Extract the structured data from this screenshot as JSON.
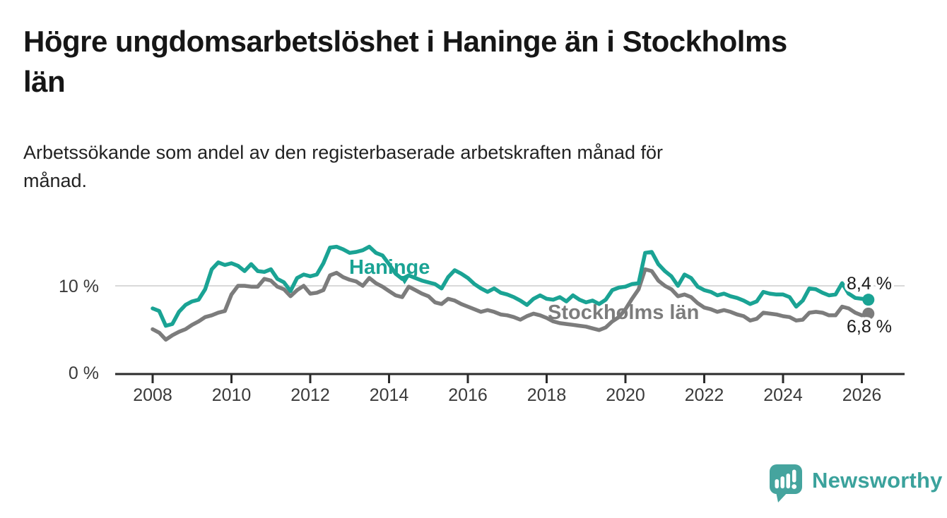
{
  "header": {
    "title": "Högre ungdomsarbetslöshet i Haninge än i Stockholms län",
    "title_lines": [
      "Högre ungdomsarbetslöshet i Haninge än i Stockholms",
      "län"
    ],
    "subtitle": "Arbetssökande som andel av den registerbaserade arbetskraften månad för månad.",
    "subtitle_lines": [
      "Arbetssökande som andel av den registerbaserade arbetskraften månad för",
      "månad."
    ]
  },
  "chart_data": {
    "type": "line",
    "title": "Högre ungdomsarbetslöshet i Haninge än i Stockholms län",
    "subtitle": "Arbetssökande som andel av den registerbaserade arbetskraften månad för månad.",
    "x_start_year": 2008,
    "x_step_months": 2,
    "x_end_label_year": 2026.17,
    "x_ticks": [
      2008,
      2010,
      2012,
      2014,
      2016,
      2018,
      2020,
      2022,
      2024,
      2026
    ],
    "y_axis": {
      "ylim": [
        0,
        15.8
      ],
      "gridlines": [
        10
      ],
      "ticks": [
        {
          "value": 10,
          "label": "10 %"
        },
        {
          "value": 0,
          "label": "0 %"
        }
      ]
    },
    "grid": "horizontal-only",
    "legend_position": "inline-labels",
    "series": [
      {
        "name": "Haninge",
        "color": "#1aa394",
        "end_label": "8,4 %",
        "end_value": 8.4,
        "values": [
          7.4,
          7.1,
          5.4,
          5.6,
          7.0,
          7.8,
          8.2,
          8.4,
          9.6,
          11.9,
          12.7,
          12.4,
          12.6,
          12.3,
          11.7,
          12.5,
          11.7,
          11.6,
          11.9,
          10.8,
          10.4,
          9.4,
          10.9,
          11.3,
          11.1,
          11.3,
          12.6,
          14.4,
          14.5,
          14.2,
          13.8,
          13.9,
          14.1,
          14.5,
          13.8,
          13.5,
          12.5,
          11.4,
          10.8,
          11.2,
          10.9,
          10.6,
          10.4,
          10.2,
          9.7,
          11.0,
          11.8,
          11.4,
          10.9,
          10.2,
          9.7,
          9.3,
          9.7,
          9.2,
          9.0,
          8.7,
          8.3,
          7.8,
          8.5,
          8.9,
          8.5,
          8.4,
          8.7,
          8.2,
          8.9,
          8.4,
          8.1,
          8.3,
          7.9,
          8.4,
          9.5,
          9.8,
          9.9,
          10.2,
          10.3,
          13.8,
          13.9,
          12.5,
          11.7,
          11.1,
          10.0,
          11.3,
          10.9,
          9.9,
          9.5,
          9.3,
          8.9,
          9.1,
          8.8,
          8.6,
          8.3,
          7.9,
          8.2,
          9.3,
          9.1,
          9.0,
          9.0,
          8.7,
          7.6,
          8.3,
          9.7,
          9.6,
          9.2,
          8.9,
          9.0,
          10.3,
          9.1,
          8.6,
          8.5,
          8.4
        ]
      },
      {
        "name": "Stockholms län",
        "color": "#7c7c7c",
        "end_label": "6,8 %",
        "end_value": 6.8,
        "values": [
          5.0,
          4.6,
          3.8,
          4.3,
          4.7,
          5.0,
          5.5,
          5.9,
          6.4,
          6.6,
          6.9,
          7.1,
          9.0,
          10.0,
          10.0,
          9.9,
          9.9,
          10.8,
          10.6,
          9.9,
          9.6,
          8.8,
          9.5,
          10.0,
          9.1,
          9.2,
          9.5,
          11.2,
          11.5,
          11.0,
          10.7,
          10.5,
          10.0,
          10.9,
          10.3,
          9.9,
          9.4,
          8.9,
          8.7,
          9.9,
          9.5,
          9.1,
          8.8,
          8.1,
          7.9,
          8.5,
          8.3,
          7.9,
          7.6,
          7.3,
          7.0,
          7.2,
          7.0,
          6.7,
          6.6,
          6.4,
          6.1,
          6.5,
          6.8,
          6.6,
          6.3,
          5.9,
          5.7,
          5.6,
          5.5,
          5.4,
          5.3,
          5.1,
          4.9,
          5.2,
          5.9,
          6.4,
          7.3,
          8.5,
          9.6,
          11.9,
          11.7,
          10.6,
          10.0,
          9.6,
          8.8,
          9.0,
          8.7,
          8.0,
          7.5,
          7.3,
          7.0,
          7.2,
          7.0,
          6.7,
          6.5,
          6.0,
          6.2,
          6.9,
          6.8,
          6.7,
          6.5,
          6.4,
          6.0,
          6.1,
          6.9,
          7.0,
          6.9,
          6.6,
          6.6,
          7.6,
          7.4,
          6.9,
          6.6,
          6.8
        ]
      }
    ]
  },
  "footer": {
    "brand": "Newsworthy",
    "brand_color": "#3ba29c",
    "logo_icon": "speech-bubble-bar-chart-exclamation"
  },
  "colors": {
    "background": "#ffffff",
    "title_text": "#161616",
    "axis_text": "#3a3a3a",
    "axis_line": "#2b2b2b",
    "gridline": "#d9d9d9",
    "haninge_teal": "#1aa394",
    "stockholm_gray": "#7c7c7c",
    "value_label_text": "#1a1a1a"
  }
}
